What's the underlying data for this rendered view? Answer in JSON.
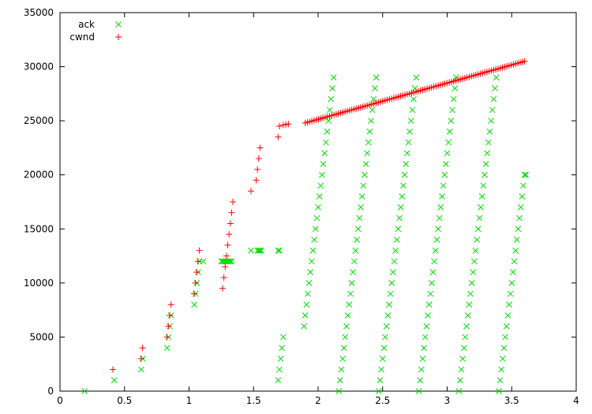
{
  "chart_data": {
    "type": "scatter",
    "title": "",
    "xlabel": "",
    "ylabel": "",
    "xlim": [
      0,
      4
    ],
    "ylim": [
      0,
      35000
    ],
    "x_ticks": [
      "0",
      "0.5",
      "1",
      "1.5",
      "2",
      "2.5",
      "3",
      "3.5",
      "4"
    ],
    "y_ticks": [
      "0",
      "5000",
      "10000",
      "15000",
      "20000",
      "25000",
      "30000",
      "35000"
    ],
    "grid": false,
    "legend_position": "top-left",
    "series": [
      {
        "name": "ack",
        "marker": "x",
        "color": "#00dd00",
        "points": [
          [
            0.19,
            0
          ],
          [
            0.42,
            1000
          ],
          [
            0.63,
            2000
          ],
          [
            0.64,
            3000
          ],
          [
            0.83,
            4000
          ],
          [
            0.84,
            5000
          ],
          [
            0.85,
            6000
          ],
          [
            0.86,
            7000
          ],
          [
            1.04,
            8000
          ],
          [
            1.05,
            9000
          ],
          [
            1.06,
            10000
          ],
          [
            1.07,
            11000
          ],
          [
            1.08,
            12000
          ],
          [
            1.11,
            12000
          ],
          [
            1.25,
            12000
          ],
          [
            1.26,
            12000
          ],
          [
            1.27,
            12000
          ],
          [
            1.28,
            12000
          ],
          [
            1.29,
            12000
          ],
          [
            1.3,
            12000
          ],
          [
            1.31,
            12000
          ],
          [
            1.32,
            12000
          ],
          [
            1.33,
            12000
          ],
          [
            1.48,
            13000
          ],
          [
            1.53,
            13000
          ],
          [
            1.54,
            13000
          ],
          [
            1.55,
            13000
          ],
          [
            1.56,
            13000
          ],
          [
            1.69,
            13000
          ],
          [
            1.7,
            13000
          ],
          [
            1.69,
            1000
          ],
          [
            1.7,
            2000
          ],
          [
            1.71,
            3000
          ],
          [
            1.72,
            4000
          ],
          [
            1.73,
            5000
          ],
          [
            1.89,
            6000
          ],
          [
            1.9,
            7000
          ],
          [
            1.91,
            8000
          ],
          [
            1.92,
            9000
          ],
          [
            1.93,
            10000
          ],
          [
            1.94,
            11000
          ],
          [
            1.95,
            12000
          ],
          [
            1.96,
            13000
          ],
          [
            1.97,
            14000
          ],
          [
            1.98,
            15000
          ],
          [
            1.99,
            16000
          ],
          [
            2.0,
            17000
          ],
          [
            2.01,
            18000
          ],
          [
            2.02,
            19000
          ],
          [
            2.03,
            20000
          ],
          [
            2.04,
            21000
          ],
          [
            2.05,
            22000
          ],
          [
            2.06,
            23000
          ],
          [
            2.07,
            24000
          ],
          [
            2.08,
            25000
          ],
          [
            2.09,
            26000
          ],
          [
            2.1,
            27000
          ],
          [
            2.11,
            28000
          ],
          [
            2.12,
            29000
          ],
          [
            2.16,
            0
          ],
          [
            2.17,
            1000
          ],
          [
            2.18,
            2000
          ],
          [
            2.19,
            3000
          ],
          [
            2.2,
            4000
          ],
          [
            2.21,
            5000
          ],
          [
            2.22,
            6000
          ],
          [
            2.23,
            7000
          ],
          [
            2.24,
            8000
          ],
          [
            2.25,
            9000
          ],
          [
            2.26,
            10000
          ],
          [
            2.27,
            11000
          ],
          [
            2.28,
            12000
          ],
          [
            2.29,
            13000
          ],
          [
            2.3,
            14000
          ],
          [
            2.31,
            15000
          ],
          [
            2.32,
            16000
          ],
          [
            2.33,
            17000
          ],
          [
            2.34,
            18000
          ],
          [
            2.35,
            19000
          ],
          [
            2.36,
            20000
          ],
          [
            2.37,
            21000
          ],
          [
            2.38,
            22000
          ],
          [
            2.39,
            23000
          ],
          [
            2.4,
            24000
          ],
          [
            2.41,
            25000
          ],
          [
            2.42,
            26000
          ],
          [
            2.43,
            27000
          ],
          [
            2.44,
            28000
          ],
          [
            2.45,
            29000
          ],
          [
            2.47,
            0
          ],
          [
            2.48,
            1000
          ],
          [
            2.49,
            2000
          ],
          [
            2.5,
            3000
          ],
          [
            2.51,
            4000
          ],
          [
            2.52,
            5000
          ],
          [
            2.53,
            6000
          ],
          [
            2.54,
            7000
          ],
          [
            2.55,
            8000
          ],
          [
            2.56,
            9000
          ],
          [
            2.57,
            10000
          ],
          [
            2.58,
            11000
          ],
          [
            2.59,
            12000
          ],
          [
            2.6,
            13000
          ],
          [
            2.61,
            14000
          ],
          [
            2.62,
            15000
          ],
          [
            2.63,
            16000
          ],
          [
            2.64,
            17000
          ],
          [
            2.65,
            18000
          ],
          [
            2.66,
            19000
          ],
          [
            2.67,
            20000
          ],
          [
            2.68,
            21000
          ],
          [
            2.69,
            22000
          ],
          [
            2.7,
            23000
          ],
          [
            2.71,
            24000
          ],
          [
            2.72,
            25000
          ],
          [
            2.73,
            26000
          ],
          [
            2.74,
            27000
          ],
          [
            2.75,
            28000
          ],
          [
            2.76,
            29000
          ],
          [
            2.78,
            0
          ],
          [
            2.79,
            1000
          ],
          [
            2.8,
            2000
          ],
          [
            2.81,
            3000
          ],
          [
            2.82,
            4000
          ],
          [
            2.83,
            5000
          ],
          [
            2.84,
            6000
          ],
          [
            2.85,
            7000
          ],
          [
            2.86,
            8000
          ],
          [
            2.87,
            9000
          ],
          [
            2.88,
            10000
          ],
          [
            2.89,
            11000
          ],
          [
            2.9,
            12000
          ],
          [
            2.91,
            13000
          ],
          [
            2.92,
            14000
          ],
          [
            2.93,
            15000
          ],
          [
            2.94,
            16000
          ],
          [
            2.95,
            17000
          ],
          [
            2.96,
            18000
          ],
          [
            2.97,
            19000
          ],
          [
            2.98,
            20000
          ],
          [
            2.99,
            21000
          ],
          [
            3.0,
            22000
          ],
          [
            3.01,
            23000
          ],
          [
            3.02,
            24000
          ],
          [
            3.03,
            25000
          ],
          [
            3.04,
            26000
          ],
          [
            3.05,
            27000
          ],
          [
            3.06,
            28000
          ],
          [
            3.07,
            29000
          ],
          [
            3.09,
            0
          ],
          [
            3.1,
            1000
          ],
          [
            3.11,
            2000
          ],
          [
            3.12,
            3000
          ],
          [
            3.13,
            4000
          ],
          [
            3.14,
            5000
          ],
          [
            3.15,
            6000
          ],
          [
            3.16,
            7000
          ],
          [
            3.17,
            8000
          ],
          [
            3.18,
            9000
          ],
          [
            3.19,
            10000
          ],
          [
            3.2,
            11000
          ],
          [
            3.21,
            12000
          ],
          [
            3.22,
            13000
          ],
          [
            3.23,
            14000
          ],
          [
            3.24,
            15000
          ],
          [
            3.25,
            16000
          ],
          [
            3.26,
            17000
          ],
          [
            3.27,
            18000
          ],
          [
            3.28,
            19000
          ],
          [
            3.29,
            20000
          ],
          [
            3.3,
            21000
          ],
          [
            3.31,
            22000
          ],
          [
            3.32,
            23000
          ],
          [
            3.33,
            24000
          ],
          [
            3.34,
            25000
          ],
          [
            3.35,
            26000
          ],
          [
            3.36,
            27000
          ],
          [
            3.37,
            28000
          ],
          [
            3.38,
            29000
          ],
          [
            3.4,
            0
          ],
          [
            3.41,
            1000
          ],
          [
            3.42,
            2000
          ],
          [
            3.43,
            3000
          ],
          [
            3.44,
            4000
          ],
          [
            3.45,
            5000
          ],
          [
            3.46,
            6000
          ],
          [
            3.47,
            7000
          ],
          [
            3.48,
            8000
          ],
          [
            3.49,
            9000
          ],
          [
            3.5,
            10000
          ],
          [
            3.51,
            11000
          ],
          [
            3.52,
            12000
          ],
          [
            3.53,
            13000
          ],
          [
            3.54,
            14000
          ],
          [
            3.55,
            15000
          ],
          [
            3.56,
            16000
          ],
          [
            3.57,
            17000
          ],
          [
            3.58,
            18000
          ],
          [
            3.59,
            19000
          ],
          [
            3.6,
            20000
          ],
          [
            3.61,
            20000
          ]
        ]
      },
      {
        "name": "cwnd",
        "marker": "+",
        "color": "#ff0000",
        "points": [
          [
            0.41,
            2000
          ],
          [
            0.63,
            3000
          ],
          [
            0.64,
            4000
          ],
          [
            0.83,
            5000
          ],
          [
            0.84,
            6000
          ],
          [
            0.85,
            7000
          ],
          [
            0.86,
            8000
          ],
          [
            1.04,
            9000
          ],
          [
            1.05,
            10000
          ],
          [
            1.06,
            11000
          ],
          [
            1.07,
            12000
          ],
          [
            1.08,
            13000
          ],
          [
            1.26,
            9500
          ],
          [
            1.27,
            10500
          ],
          [
            1.28,
            11500
          ],
          [
            1.29,
            12500
          ],
          [
            1.3,
            13500
          ],
          [
            1.31,
            14500
          ],
          [
            1.32,
            15500
          ],
          [
            1.33,
            16500
          ],
          [
            1.34,
            17500
          ],
          [
            1.48,
            18500
          ],
          [
            1.52,
            19500
          ],
          [
            1.53,
            20500
          ],
          [
            1.54,
            21500
          ],
          [
            1.55,
            22500
          ],
          [
            1.69,
            23500
          ],
          [
            1.7,
            24500
          ],
          [
            1.73,
            24600
          ],
          [
            1.75,
            24650
          ],
          [
            1.77,
            24700
          ]
        ],
        "segment": {
          "x_start": 1.9,
          "x_end": 3.6,
          "y_start": 24800,
          "y_end": 30500,
          "count": 100
        }
      }
    ]
  }
}
